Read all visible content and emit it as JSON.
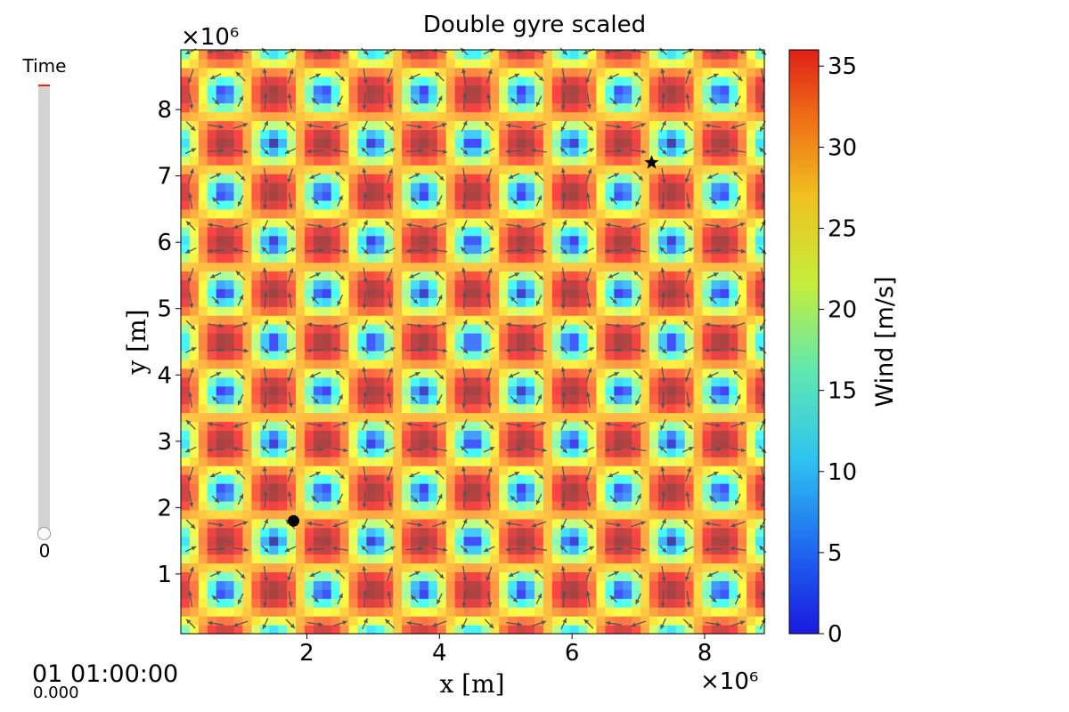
{
  "slider": {
    "title": "Time",
    "value": "0",
    "level": 0
  },
  "time_display": {
    "main": "01 01:00:00",
    "sub": "0.000"
  },
  "chart_data": {
    "type": "heatmap",
    "title": "Double gyre scaled",
    "xlabel": "x [m]",
    "ylabel": "y [m]",
    "x_offset_label": "×10⁶",
    "y_offset_label": "×10⁶",
    "xlim": [
      0.1,
      8.9
    ],
    "ylim": [
      0.1,
      8.9
    ],
    "xticks": [
      2,
      4,
      6,
      8
    ],
    "yticks": [
      1,
      2,
      3,
      4,
      5,
      6,
      7,
      8
    ],
    "cell_period": 1.5,
    "field": "speed = 36 * sqrt(sin²(πx/1.5)·cos²(πy/1.5) + cos²(πx/1.5)·sin²(πy/1.5)), with x, y in 10⁶ m",
    "grid": false,
    "colorbar": {
      "label": "Wind [m/s]",
      "min": 0,
      "max": 36,
      "ticks": [
        0,
        5,
        10,
        15,
        20,
        25,
        30,
        35
      ],
      "colormap": "jet"
    },
    "markers": [
      {
        "shape": "circle",
        "x": 1.8,
        "y": 1.8,
        "color": "#000000"
      },
      {
        "shape": "star",
        "x": 7.2,
        "y": 7.2,
        "color": "#000000"
      }
    ],
    "arrow_color": "#555555"
  }
}
